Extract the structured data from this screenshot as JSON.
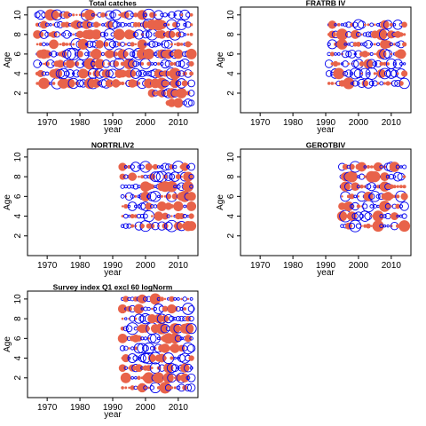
{
  "figure": {
    "background": "#ffffff",
    "frame_color": "#000000"
  },
  "chart_data": [
    {
      "type": "scatter",
      "subtype": "bubble-residuals",
      "title": "Total catches",
      "xlabel": "year",
      "ylabel": "Age",
      "xlim": [
        1964,
        2016
      ],
      "ylim": [
        0,
        10.8
      ],
      "x_ticks": [
        1970,
        1980,
        1990,
        2000,
        2010
      ],
      "y_ticks": [
        2,
        4,
        6,
        8,
        10
      ],
      "x_tick_labels": [
        "1970",
        "1980",
        "1990",
        "2000",
        "2010"
      ],
      "y_tick_labels": [
        "2",
        "4",
        "6",
        "8",
        "10"
      ],
      "ages": [
        1,
        2,
        3,
        4,
        5,
        6,
        7,
        8,
        9,
        10
      ],
      "years": {
        "from": 1967,
        "to": 2014
      },
      "ages_by_year": [
        {
          "from_year": 1967,
          "to_year": 2001,
          "min_age": 3,
          "max_age": 10
        },
        {
          "from_year": 2002,
          "to_year": 2006,
          "min_age": 2,
          "max_age": 10
        },
        {
          "from_year": 2007,
          "to_year": 2014,
          "min_age": 1,
          "max_age": 10
        }
      ],
      "positive_color": "#e8634a",
      "negative_color": "#0000ee",
      "seed": 11
    },
    {
      "type": "scatter",
      "subtype": "bubble-residuals",
      "title": "FRATRB IV",
      "xlabel": "year",
      "ylabel": "Age",
      "xlim": [
        1964,
        2016
      ],
      "ylim": [
        0,
        10.8
      ],
      "x_ticks": [
        1970,
        1980,
        1990,
        2000,
        2010
      ],
      "y_ticks": [
        2,
        4,
        6,
        8,
        10
      ],
      "x_tick_labels": [
        "1970",
        "1980",
        "1990",
        "2000",
        "2010"
      ],
      "y_tick_labels": [
        "2",
        "4",
        "6",
        "8",
        "10"
      ],
      "ages": [
        3,
        4,
        5,
        6,
        7,
        8,
        9
      ],
      "years": {
        "from": 1991,
        "to": 2014
      },
      "positive_color": "#e8634a",
      "negative_color": "#0000ee",
      "seed": 23
    },
    {
      "type": "scatter",
      "subtype": "bubble-residuals",
      "title": "NORTRLIV2",
      "xlabel": "year",
      "ylabel": "Age",
      "xlim": [
        1964,
        2016
      ],
      "ylim": [
        0,
        10.8
      ],
      "x_ticks": [
        1970,
        1980,
        1990,
        2000,
        2010
      ],
      "y_ticks": [
        2,
        4,
        6,
        8,
        10
      ],
      "x_tick_labels": [
        "1970",
        "1980",
        "1990",
        "2000",
        "2010"
      ],
      "y_tick_labels": [
        "2",
        "4",
        "6",
        "8",
        "10"
      ],
      "ages": [
        3,
        4,
        5,
        6,
        7,
        8,
        9
      ],
      "years": {
        "from": 1993,
        "to": 2014
      },
      "positive_color": "#e8634a",
      "negative_color": "#0000ee",
      "seed": 37
    },
    {
      "type": "scatter",
      "subtype": "bubble-residuals",
      "title": "GEROTBIV",
      "xlabel": "year",
      "ylabel": "Age",
      "xlim": [
        1964,
        2016
      ],
      "ylim": [
        0,
        10.8
      ],
      "x_ticks": [
        1970,
        1980,
        1990,
        2000,
        2010
      ],
      "y_ticks": [
        2,
        4,
        6,
        8,
        10
      ],
      "x_tick_labels": [
        "1970",
        "1980",
        "1990",
        "2000",
        "2010"
      ],
      "y_tick_labels": [
        "2",
        "4",
        "6",
        "8",
        "10"
      ],
      "ages": [
        3,
        4,
        5,
        6,
        7,
        8,
        9
      ],
      "years": {
        "from": 1995,
        "to": 2014
      },
      "positive_color": "#e8634a",
      "negative_color": "#0000ee",
      "seed": 41
    },
    {
      "type": "scatter",
      "subtype": "bubble-residuals",
      "title": "Survey index Q1 excl 60 logNorm",
      "xlabel": "year",
      "ylabel": "Age",
      "xlim": [
        1964,
        2016
      ],
      "ylim": [
        0,
        10.8
      ],
      "x_ticks": [
        1970,
        1980,
        1990,
        2000,
        2010
      ],
      "y_ticks": [
        2,
        4,
        6,
        8,
        10
      ],
      "x_tick_labels": [
        "1970",
        "1980",
        "1990",
        "2000",
        "2010"
      ],
      "y_tick_labels": [
        "2",
        "4",
        "6",
        "8",
        "10"
      ],
      "ages": [
        1,
        2,
        3,
        4,
        5,
        6,
        7,
        8,
        9,
        10
      ],
      "years": {
        "from": 1993,
        "to": 2014
      },
      "positive_color": "#e8634a",
      "negative_color": "#0000ee",
      "seed": 53
    }
  ]
}
